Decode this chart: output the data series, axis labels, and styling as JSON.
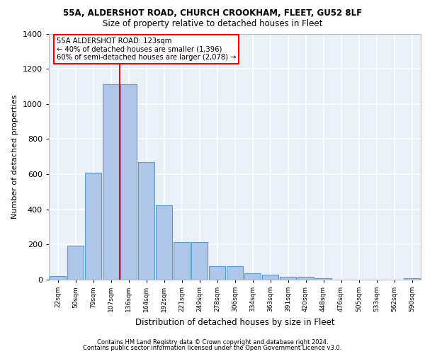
{
  "title_line1": "55A, ALDERSHOT ROAD, CHURCH CROOKHAM, FLEET, GU52 8LF",
  "title_line2": "Size of property relative to detached houses in Fleet",
  "xlabel": "Distribution of detached houses by size in Fleet",
  "ylabel": "Number of detached properties",
  "footnote1": "Contains HM Land Registry data © Crown copyright and database right 2024.",
  "footnote2": "Contains public sector information licensed under the Open Government Licence v3.0.",
  "bar_labels": [
    "22sqm",
    "50sqm",
    "79sqm",
    "107sqm",
    "136sqm",
    "164sqm",
    "192sqm",
    "221sqm",
    "249sqm",
    "278sqm",
    "306sqm",
    "334sqm",
    "363sqm",
    "391sqm",
    "420sqm",
    "448sqm",
    "476sqm",
    "505sqm",
    "533sqm",
    "562sqm",
    "590sqm"
  ],
  "bar_values": [
    20,
    195,
    610,
    1110,
    1110,
    670,
    425,
    215,
    215,
    75,
    75,
    35,
    30,
    15,
    15,
    10,
    0,
    0,
    0,
    0,
    10
  ],
  "bar_color": "#aec6e8",
  "bar_edge_color": "#5b9bd5",
  "vline_index": 3.5,
  "vline_color": "red",
  "annotation_text": "55A ALDERSHOT ROAD: 123sqm\n← 40% of detached houses are smaller (1,396)\n60% of semi-detached houses are larger (2,078) →",
  "annotation_box_color": "white",
  "annotation_box_edge": "red",
  "ylim": [
    0,
    1400
  ],
  "yticks": [
    0,
    200,
    400,
    600,
    800,
    1000,
    1200,
    1400
  ],
  "background_color": "#eaf0f8",
  "grid_color": "white",
  "fig_bg": "white",
  "title1_fontsize": 8.5,
  "title2_fontsize": 8.5,
  "footnote_fontsize": 6.0,
  "ylabel_fontsize": 8,
  "xlabel_fontsize": 8.5,
  "ytick_fontsize": 8,
  "xtick_fontsize": 6.5
}
